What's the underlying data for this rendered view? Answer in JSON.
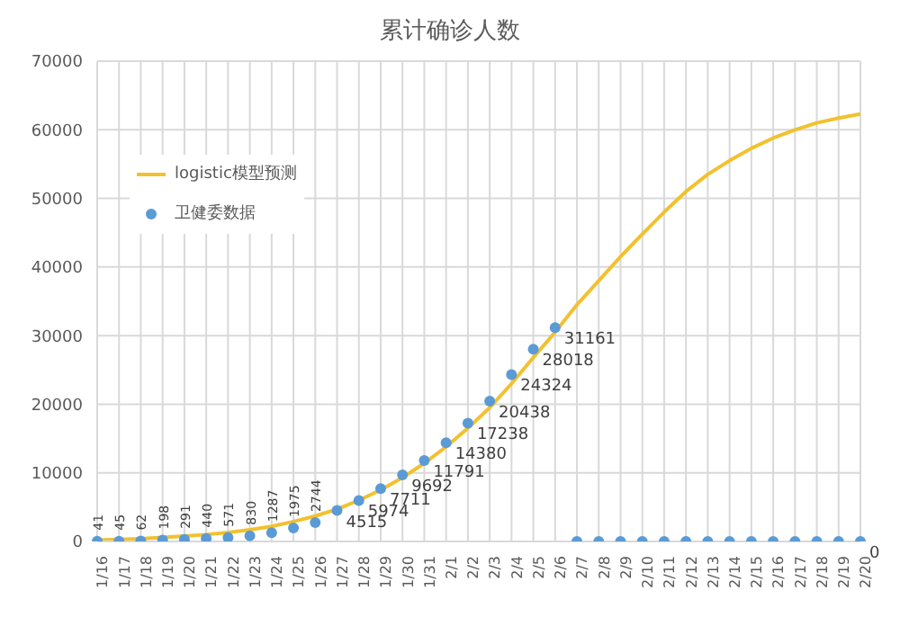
{
  "chart_data": {
    "type": "line",
    "title": "累计确诊人数",
    "categories": [
      "1/16",
      "1/17",
      "1/18",
      "1/19",
      "1/20",
      "1/21",
      "1/22",
      "1/23",
      "1/24",
      "1/25",
      "1/26",
      "1/27",
      "1/28",
      "1/29",
      "1/30",
      "1/31",
      "2/1",
      "2/2",
      "2/3",
      "2/4",
      "2/5",
      "2/6",
      "2/7",
      "2/8",
      "2/9",
      "2/10",
      "2/11",
      "2/12",
      "2/13",
      "2/14",
      "2/15",
      "2/16",
      "2/17",
      "2/18",
      "2/19",
      "2/20"
    ],
    "series": [
      {
        "name": "logistic模型预测",
        "color": "#f2c12e",
        "marker": "none",
        "values": [
          200,
          300,
          400,
          600,
          800,
          1000,
          1300,
          1700,
          2200,
          2900,
          3700,
          4700,
          6000,
          7500,
          9300,
          11400,
          13800,
          16500,
          19500,
          23000,
          26800,
          30500,
          34500,
          38000,
          41500,
          44800,
          48000,
          51000,
          53500,
          55500,
          57300,
          58800,
          60000,
          61000,
          61700,
          62300
        ]
      },
      {
        "name": "卫健委数据",
        "type": "scatter",
        "color": "#5b9bd5",
        "marker": "circle",
        "values": [
          41,
          45,
          62,
          198,
          291,
          440,
          571,
          830,
          1287,
          1975,
          2744,
          4515,
          5974,
          7711,
          9692,
          11791,
          14380,
          17238,
          20438,
          24324,
          28018,
          31161,
          0,
          0,
          0,
          0,
          0,
          0,
          0,
          0,
          0,
          0,
          0,
          0,
          0,
          0
        ],
        "value_labels": [
          "41",
          "45",
          "62",
          "198",
          "291",
          "440",
          "571",
          "830",
          "1287",
          "1975",
          "2744",
          "4515",
          "5974",
          "7711",
          "9692",
          "11791",
          "14380",
          "17238",
          "20438",
          "24324",
          "28018",
          "31161",
          null,
          null,
          null,
          null,
          null,
          null,
          null,
          null,
          null,
          null,
          null,
          null,
          null,
          "0"
        ]
      }
    ],
    "ylim": [
      0,
      70000
    ],
    "yticks": [
      0,
      10000,
      20000,
      30000,
      40000,
      50000,
      60000,
      70000
    ],
    "grid": true,
    "legend": "top left"
  }
}
